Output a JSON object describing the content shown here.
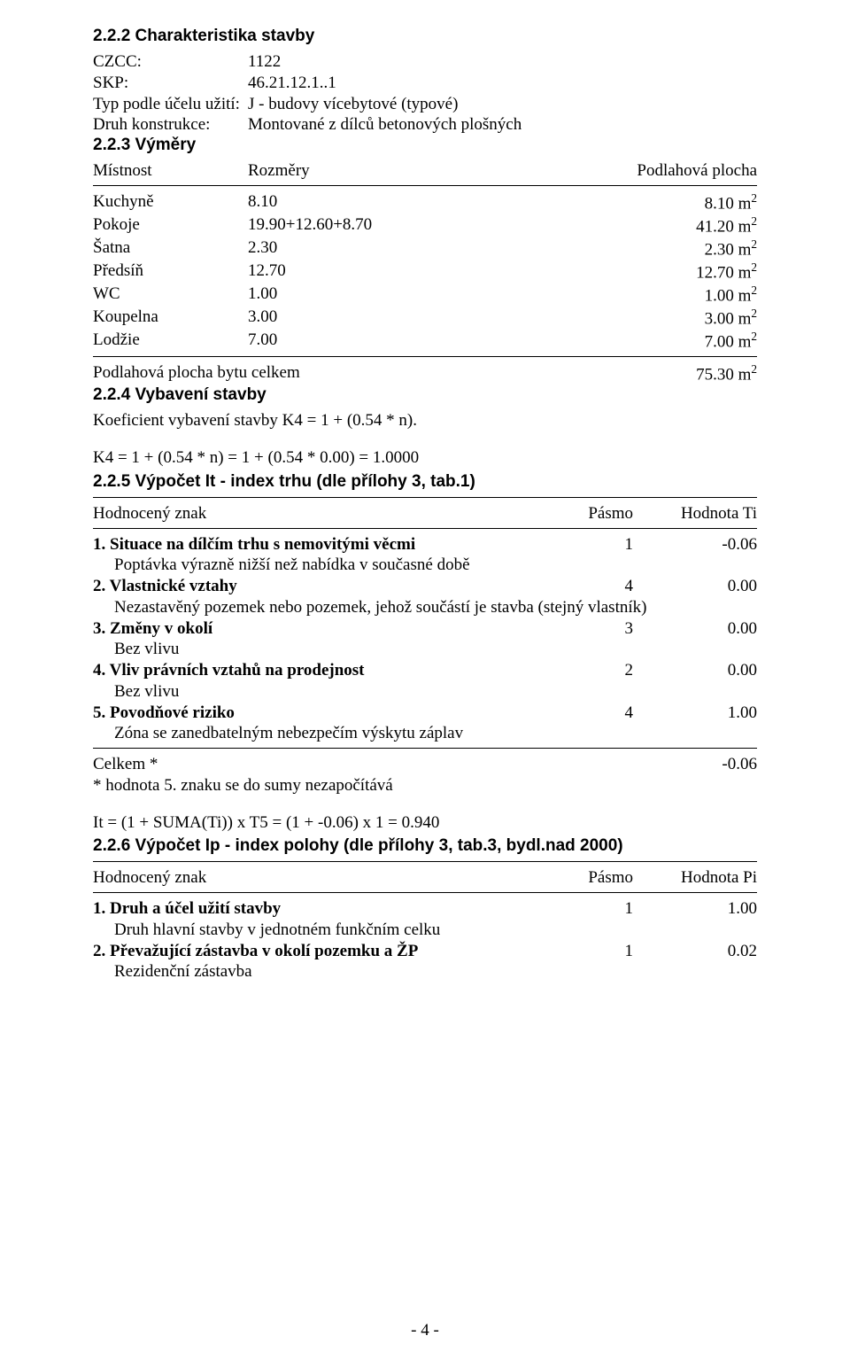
{
  "s222": {
    "title": "2.2.2 Charakteristika stavby",
    "rows": [
      {
        "k": "CZCC:",
        "v": "1122"
      },
      {
        "k": "SKP:",
        "v": "46.21.12.1..1"
      },
      {
        "k": "Typ podle účelu užití:",
        "v": "J - budovy vícebytové (typové)"
      },
      {
        "k": "Druh konstrukce:",
        "v": "Montované z dílců betonových plošných"
      }
    ]
  },
  "s223": {
    "title": "2.2.3 Výměry",
    "h1": "Místnost",
    "h2": "Rozměry",
    "h3": "Podlahová plocha",
    "unit_prefix": "m",
    "unit_sup": "2",
    "rows": [
      {
        "c1": "Kuchyně",
        "c2": "8.10",
        "c3": "8.10"
      },
      {
        "c1": "Pokoje",
        "c2": "19.90+12.60+8.70",
        "c3": "41.20"
      },
      {
        "c1": "Šatna",
        "c2": "2.30",
        "c3": "2.30"
      },
      {
        "c1": "Předsíň",
        "c2": "12.70",
        "c3": "12.70"
      },
      {
        "c1": "WC",
        "c2": "1.00",
        "c3": "1.00"
      },
      {
        "c1": "Koupelna",
        "c2": "3.00",
        "c3": "3.00"
      },
      {
        "c1": "Lodžie",
        "c2": "7.00",
        "c3": "7.00"
      }
    ],
    "total_label": "Podlahová plocha bytu celkem",
    "total_value": "75.30"
  },
  "s224": {
    "title": "2.2.4 Vybavení stavby",
    "line1": "Koeficient vybavení stavby K4 = 1 + (0.54 * n).",
    "line2": "K4 = 1 + (0.54 * n) = 1 + (0.54 * 0.00) = 1.0000"
  },
  "s225": {
    "title": "2.2.5 Výpočet It - index trhu (dle přílohy 3, tab.1)",
    "h1": "Hodnocený znak",
    "h2": "Pásmo",
    "h3": "Hodnota Ti",
    "items": [
      {
        "title": "1. Situace na dílčím trhu s nemovitými věcmi",
        "pasmo": "1",
        "hodnota": "-0.06",
        "desc": "Poptávka výrazně nižší než nabídka v současné době"
      },
      {
        "title": "2. Vlastnické vztahy",
        "pasmo": "4",
        "hodnota": "0.00",
        "desc": "Nezastavěný pozemek nebo pozemek, jehož součástí je stavba (stejný vlastník)"
      },
      {
        "title": "3. Změny v okolí",
        "pasmo": "3",
        "hodnota": "0.00",
        "desc": "Bez vlivu"
      },
      {
        "title": "4. Vliv právních vztahů na prodejnost",
        "pasmo": "2",
        "hodnota": "0.00",
        "desc": "Bez vlivu"
      },
      {
        "title": "5. Povodňové riziko",
        "pasmo": "4",
        "hodnota": "1.00",
        "desc": "Zóna se zanedbatelným nebezpečím výskytu záplav"
      }
    ],
    "celkem_label": "Celkem *",
    "celkem_value": "-0.06",
    "footnote": "* hodnota 5. znaku se do sumy nezapočítává",
    "formula": "It = (1 + SUMA(Ti)) x T5 = (1 + -0.06) x 1 = 0.940"
  },
  "s226": {
    "title": "2.2.6 Výpočet Ip - index polohy (dle přílohy 3, tab.3, bydl.nad 2000)",
    "h1": "Hodnocený znak",
    "h2": "Pásmo",
    "h3": "Hodnota Pi",
    "items": [
      {
        "title": "1. Druh a účel užití stavby",
        "pasmo": "1",
        "hodnota": "1.00",
        "desc": "Druh hlavní stavby v jednotném funkčním celku"
      },
      {
        "title": "2. Převažující zástavba v okolí pozemku a ŽP",
        "pasmo": "1",
        "hodnota": "0.02",
        "desc": "Rezidenční zástavba"
      }
    ]
  },
  "page_number": "- 4 -"
}
